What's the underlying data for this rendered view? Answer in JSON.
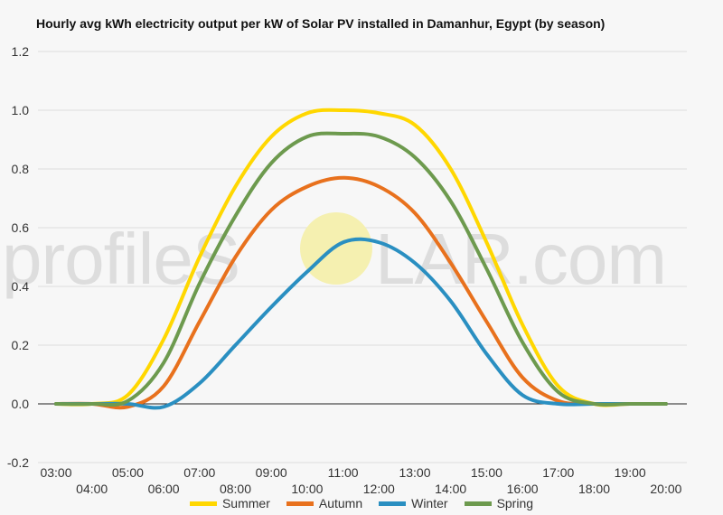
{
  "title": "Hourly avg kWh electricity output per kW of Solar PV installed in Damanhur, Egypt (by season)",
  "watermark": {
    "left_text": "profileS",
    "right_text": "LAR.com",
    "sun_color": "#f5f0b0"
  },
  "chart_data": {
    "type": "line",
    "title": "Hourly avg kWh electricity output per kW of Solar PV installed in Damanhur, Egypt (by season)",
    "xlabel": "",
    "ylabel": "",
    "x": [
      "03:00",
      "04:00",
      "05:00",
      "06:00",
      "07:00",
      "08:00",
      "09:00",
      "10:00",
      "11:00",
      "12:00",
      "13:00",
      "14:00",
      "15:00",
      "16:00",
      "17:00",
      "18:00",
      "19:00",
      "20:00"
    ],
    "x_tick_labels_upper": [
      "03:00",
      "05:00",
      "07:00",
      "09:00",
      "11:00",
      "13:00",
      "15:00",
      "17:00",
      "19:00"
    ],
    "x_tick_labels_lower": [
      "04:00",
      "06:00",
      "08:00",
      "10:00",
      "12:00",
      "14:00",
      "16:00",
      "18:00",
      "20:00"
    ],
    "ylim": [
      -0.2,
      1.2
    ],
    "y_ticks": [
      "-0.2",
      "0.0",
      "0.2",
      "0.4",
      "0.6",
      "0.8",
      "1.0",
      "1.2"
    ],
    "grid": true,
    "legend_position": "bottom",
    "series": [
      {
        "name": "Summer",
        "color": "#ffd700",
        "values": [
          0.0,
          0.0,
          0.03,
          0.22,
          0.5,
          0.74,
          0.91,
          0.99,
          1.0,
          0.99,
          0.95,
          0.8,
          0.55,
          0.27,
          0.06,
          0.0,
          0.0,
          0.0
        ]
      },
      {
        "name": "Autumn",
        "color": "#e8711d",
        "values": [
          0.0,
          0.0,
          -0.01,
          0.06,
          0.28,
          0.5,
          0.66,
          0.74,
          0.77,
          0.74,
          0.65,
          0.48,
          0.28,
          0.09,
          0.01,
          0.0,
          0.0,
          0.0
        ]
      },
      {
        "name": "Winter",
        "color": "#2a8fc1",
        "values": [
          0.0,
          0.0,
          0.0,
          -0.01,
          0.07,
          0.2,
          0.33,
          0.45,
          0.55,
          0.55,
          0.48,
          0.35,
          0.17,
          0.03,
          0.0,
          0.0,
          0.0,
          0.0
        ]
      },
      {
        "name": "Spring",
        "color": "#6d9a4e",
        "values": [
          0.0,
          0.0,
          0.01,
          0.14,
          0.41,
          0.64,
          0.82,
          0.91,
          0.92,
          0.91,
          0.84,
          0.69,
          0.46,
          0.21,
          0.04,
          0.0,
          0.0,
          0.0
        ]
      }
    ]
  }
}
